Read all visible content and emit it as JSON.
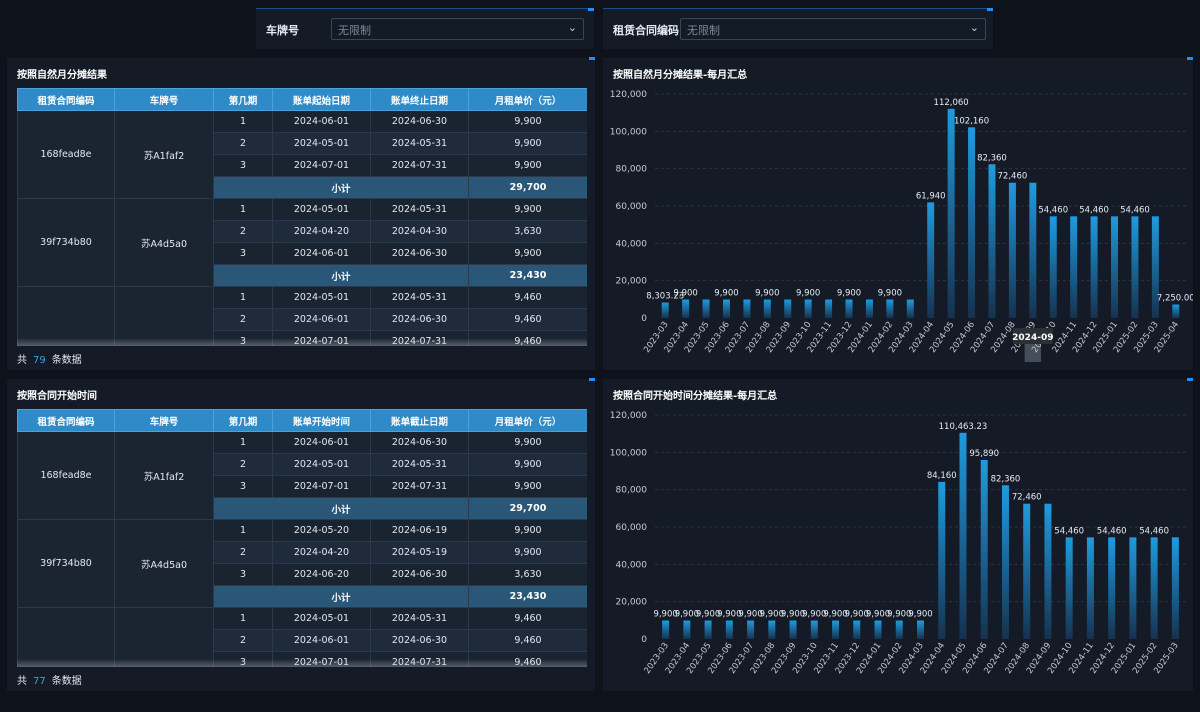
{
  "filters": {
    "plate": {
      "label": "车牌号",
      "placeholder": "无限制"
    },
    "contract": {
      "label": "租赁合同编码",
      "placeholder": "无限制"
    }
  },
  "table1": {
    "title": "按照自然月分摊结果",
    "headers": [
      "租赁合同编码",
      "车牌号",
      "第几期",
      "账单起始日期",
      "账单终止日期",
      "月租单价（元）"
    ],
    "groups": [
      {
        "code": "168fead8e",
        "plate": "苏A1faf2",
        "rows": [
          [
            "1",
            "2024-06-01",
            "2024-06-30",
            "9,900"
          ],
          [
            "2",
            "2024-05-01",
            "2024-05-31",
            "9,900"
          ],
          [
            "3",
            "2024-07-01",
            "2024-07-31",
            "9,900"
          ]
        ],
        "subtotal_label": "小计",
        "subtotal": "29,700"
      },
      {
        "code": "39f734b80",
        "plate": "苏A4d5a0",
        "rows": [
          [
            "1",
            "2024-05-01",
            "2024-05-31",
            "9,900"
          ],
          [
            "2",
            "2024-04-20",
            "2024-04-30",
            "3,630"
          ],
          [
            "3",
            "2024-06-01",
            "2024-06-30",
            "9,900"
          ]
        ],
        "subtotal_label": "小计",
        "subtotal": "23,430"
      },
      {
        "code": "",
        "plate": "",
        "rows": [
          [
            "1",
            "2024-05-01",
            "2024-05-31",
            "9,460"
          ],
          [
            "2",
            "2024-06-01",
            "2024-06-30",
            "9,460"
          ],
          [
            "3",
            "2024-07-01",
            "2024-07-31",
            "9,460"
          ]
        ]
      }
    ],
    "footer": {
      "prefix": "共",
      "count": "79",
      "suffix": "条数据"
    }
  },
  "table2": {
    "title": "按照合同开始时间",
    "headers": [
      "租赁合同编码",
      "车牌号",
      "第几期",
      "账单开始时间",
      "账单截止日期",
      "月租单价（元）"
    ],
    "groups": [
      {
        "code": "168fead8e",
        "plate": "苏A1faf2",
        "rows": [
          [
            "1",
            "2024-06-01",
            "2024-06-30",
            "9,900"
          ],
          [
            "2",
            "2024-05-01",
            "2024-05-31",
            "9,900"
          ],
          [
            "3",
            "2024-07-01",
            "2024-07-31",
            "9,900"
          ]
        ],
        "subtotal_label": "小计",
        "subtotal": "29,700"
      },
      {
        "code": "39f734b80",
        "plate": "苏A4d5a0",
        "rows": [
          [
            "1",
            "2024-05-20",
            "2024-06-19",
            "9,900"
          ],
          [
            "2",
            "2024-04-20",
            "2024-05-19",
            "9,900"
          ],
          [
            "3",
            "2024-06-20",
            "2024-06-30",
            "3,630"
          ]
        ],
        "subtotal_label": "小计",
        "subtotal": "23,430"
      },
      {
        "code": "",
        "plate": "",
        "rows": [
          [
            "1",
            "2024-05-01",
            "2024-05-31",
            "9,460"
          ],
          [
            "2",
            "2024-06-01",
            "2024-06-30",
            "9,460"
          ],
          [
            "3",
            "2024-07-01",
            "2024-07-31",
            "9,460"
          ]
        ]
      }
    ],
    "footer": {
      "prefix": "共",
      "count": "77",
      "suffix": "条数据"
    }
  },
  "chart_data": [
    {
      "type": "bar",
      "title": "按照自然月分摊结果-每月汇总",
      "categories": [
        "2023-03",
        "2023-04",
        "2023-05",
        "2023-06",
        "2023-07",
        "2023-08",
        "2023-09",
        "2023-10",
        "2023-11",
        "2023-12",
        "2024-01",
        "2024-02",
        "2024-03",
        "2024-04",
        "2024-05",
        "2024-06",
        "2024-07",
        "2024-08",
        "2024-09",
        "2024-10",
        "2024-11",
        "2024-12",
        "2025-01",
        "2025-02",
        "2025-03",
        "2025-04"
      ],
      "values": [
        8303.23,
        9900,
        9900,
        9900,
        9900,
        9900,
        9900,
        9900,
        9900,
        9900,
        9900,
        9900,
        9900,
        61940,
        112060,
        102160,
        82360,
        72460,
        72460,
        54460,
        54460,
        54460,
        54460,
        54460,
        54460,
        7250
      ],
      "labels": [
        "8,303.23",
        "9,900",
        "",
        "9,900",
        "",
        "9,900",
        "",
        "9,900",
        "",
        "9,900",
        "",
        "9,900",
        "",
        "61,940",
        "112,060",
        "102,160",
        "82,360",
        "72,460",
        "",
        "54,460",
        "",
        "54,460",
        "",
        "54,460",
        "",
        "7,250.00"
      ],
      "yticks": [
        0,
        20000,
        40000,
        60000,
        80000,
        100000,
        120000
      ],
      "ytick_labels": [
        "0",
        "20,000",
        "40,000",
        "60,000",
        "80,000",
        "100,000",
        "120,000"
      ],
      "ylim": [
        0,
        120000
      ],
      "grid": true,
      "tooltip": {
        "category": "2024-09"
      }
    },
    {
      "type": "bar",
      "title": "按照合同开始时间分摊结果-每月汇总",
      "categories": [
        "2023-03",
        "2023-04",
        "2023-05",
        "2023-06",
        "2023-07",
        "2023-08",
        "2023-09",
        "2023-10",
        "2023-11",
        "2023-12",
        "2024-01",
        "2024-02",
        "2024-03",
        "2024-04",
        "2024-05",
        "2024-06",
        "2024-07",
        "2024-08",
        "2024-09",
        "2024-10",
        "2024-11",
        "2024-12",
        "2025-01",
        "2025-02",
        "2025-03"
      ],
      "values": [
        9900,
        9900,
        9900,
        9900,
        9900,
        9900,
        9900,
        9900,
        9900,
        9900,
        9900,
        9900,
        9900,
        84160,
        110463.23,
        95890,
        82360,
        72460,
        72460,
        54460,
        54460,
        54460,
        54460,
        54460,
        54460
      ],
      "labels": [
        "9,900",
        "9,900",
        "9,900",
        "9,900",
        "9,900",
        "9,900",
        "9,900",
        "9,900",
        "9,900",
        "9,900",
        "9,900",
        "9,900",
        "9,900",
        "84,160",
        "110,463.23",
        "95,890",
        "82,360",
        "72,460",
        "",
        "54,460",
        "",
        "54,460",
        "",
        "54,460",
        ""
      ],
      "yticks": [
        0,
        20000,
        40000,
        60000,
        80000,
        100000,
        120000
      ],
      "ytick_labels": [
        "0",
        "20,000",
        "40,000",
        "60,000",
        "80,000",
        "100,000",
        "120,000"
      ],
      "ylim": [
        0,
        120000
      ],
      "grid": true
    }
  ],
  "colors": {
    "bar_top": "#1e9be0",
    "bar_bottom": "#16324f",
    "header": "#2f8ac8",
    "accent": "#1e8fff"
  }
}
